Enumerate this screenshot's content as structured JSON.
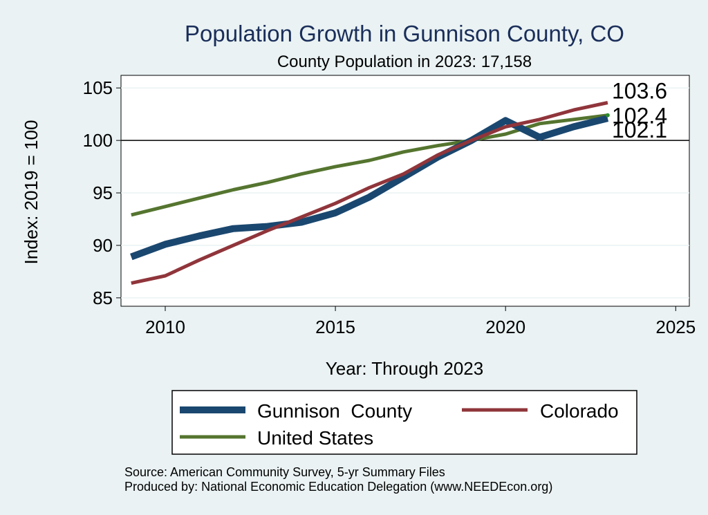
{
  "chart_data": {
    "type": "line",
    "title": "Population Growth in Gunnison County, CO",
    "subtitle": "County Population in 2023: 17,158",
    "xlabel": "Year: Through 2023",
    "ylabel": "Index: 2019 = 100",
    "xlim": [
      2008.7,
      2025.4
    ],
    "ylim": [
      84.2,
      106.2
    ],
    "xticks": [
      2010,
      2015,
      2020,
      2025
    ],
    "yticks": [
      85,
      90,
      95,
      100,
      105
    ],
    "reference_line": 100,
    "grid": true,
    "legend_position": "bottom",
    "series": [
      {
        "name": "Gunnison  County",
        "color": "#1a476f",
        "x": [
          2009,
          2010,
          2011,
          2012,
          2013,
          2014,
          2015,
          2016,
          2017,
          2018,
          2019,
          2020,
          2021,
          2022,
          2023
        ],
        "values": [
          88.9,
          90.1,
          90.9,
          91.6,
          91.8,
          92.2,
          93.1,
          94.6,
          96.5,
          98.4,
          100.0,
          101.9,
          100.3,
          101.3,
          102.1
        ],
        "end_label": "102.1"
      },
      {
        "name": "Colorado",
        "color": "#90353b",
        "x": [
          2009,
          2010,
          2011,
          2012,
          2013,
          2014,
          2015,
          2016,
          2017,
          2018,
          2019,
          2020,
          2021,
          2022,
          2023
        ],
        "values": [
          86.4,
          87.1,
          88.6,
          90.0,
          91.4,
          92.7,
          94.0,
          95.5,
          96.8,
          98.6,
          100.0,
          101.3,
          102.0,
          102.9,
          103.6
        ],
        "end_label": "103.6"
      },
      {
        "name": "United States",
        "color": "#55752f",
        "x": [
          2009,
          2010,
          2011,
          2012,
          2013,
          2014,
          2015,
          2016,
          2017,
          2018,
          2019,
          2020,
          2021,
          2022,
          2023
        ],
        "values": [
          92.9,
          93.7,
          94.5,
          95.3,
          96.0,
          96.8,
          97.5,
          98.1,
          98.9,
          99.5,
          100.0,
          100.6,
          101.6,
          102.0,
          102.4
        ],
        "end_label": "102.4"
      }
    ]
  },
  "notes": [
    "Source: American Community Survey, 5-yr Summary Files",
    "Produced by: National Economic Education Delegation (www.NEEDEcon.org)"
  ]
}
